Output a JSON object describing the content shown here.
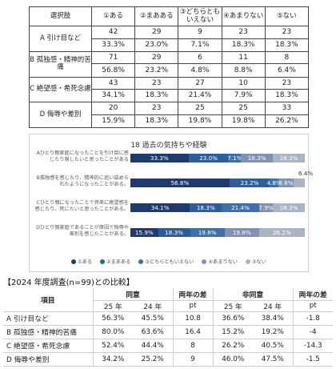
{
  "top_table": {
    "corner": "選択肢",
    "headers": [
      "①ある",
      "②まあある",
      "③どちらともいえない",
      "④あまりない",
      "⑤ない"
    ],
    "rows": [
      {
        "label": "A 引け目など",
        "counts": [
          "42",
          "29",
          "9",
          "23",
          "23"
        ],
        "percents": [
          "33.3%",
          "23.0%",
          "7.1%",
          "18.3%",
          "18.3%"
        ]
      },
      {
        "label": "B 孤独感・精神的苦痛",
        "counts": [
          "71",
          "29",
          "6",
          "11",
          "8"
        ],
        "percents": [
          "56.8%",
          "23.2%",
          "4.8%",
          "8.8%",
          "6.4%"
        ]
      },
      {
        "label": "C 絶望感・希死念慮",
        "counts": [
          "43",
          "23",
          "27",
          "10",
          "23"
        ],
        "percents": [
          "34.1%",
          "18.3%",
          "21.4%",
          "7.9%",
          "18.3%"
        ]
      },
      {
        "label": "D 侮辱や差別",
        "counts": [
          "20",
          "23",
          "25",
          "25",
          "33"
        ],
        "percents": [
          "15.9%",
          "18.3%",
          "19.8%",
          "19.8%",
          "26.2%"
        ]
      }
    ]
  },
  "chart_data": {
    "type": "bar",
    "stacked": true,
    "orientation": "horizontal",
    "title": "18 過去の気持ちや経験",
    "categories": [
      "Aひとり親家庭になったことを引け目に感じたり隠したいと思ったことがある",
      "B孤独感を感じたり、精神的に追い詰められたようになったことがある。",
      "Cひとり親になったことで将来に絶望感を感じたり、死にたいと思ったことがある。",
      "Dひとり親家庭であることが原因で侮辱や差別を感じたことがある。"
    ],
    "series": [
      {
        "name": "①ある",
        "color": "#1f3a6e",
        "values": [
          33.3,
          56.8,
          34.1,
          15.9
        ]
      },
      {
        "name": "②まあある",
        "color": "#2d5d9a",
        "values": [
          23.0,
          23.2,
          18.3,
          18.3
        ]
      },
      {
        "name": "③どちらともいえない",
        "color": "#3f6fab",
        "values": [
          7.1,
          4.8,
          21.4,
          19.8
        ]
      },
      {
        "name": "④あまりない",
        "color": "#7f93b0",
        "values": [
          18.3,
          8.8,
          7.9,
          19.8
        ]
      },
      {
        "name": "⑤ない",
        "color": "#a9b4c4",
        "values": [
          18.3,
          6.4,
          18.3,
          26.2
        ]
      }
    ],
    "unit": "%",
    "callouts": [
      {
        "row": 1,
        "text": "6.4%"
      }
    ]
  },
  "comparison": {
    "title": "【2024 年度調査(n=99)との比較】",
    "item_header": "項目",
    "agree_header": "同意",
    "agree_diff_header": "両年の差",
    "disagree_header": "非同意",
    "disagree_diff_header": "両年の差",
    "sub": {
      "y25": "25 年",
      "y24": "24 年",
      "pt": "pt"
    },
    "rows": [
      {
        "item": "A 引け目など",
        "agree25": "56.3%",
        "agree24": "45.5%",
        "agree_diff": "10.8",
        "dis25": "36.6%",
        "dis24": "38.4%",
        "dis_diff": "-1.8"
      },
      {
        "item": "B 孤独感・精神的苦痛",
        "agree25": "80.0%",
        "agree24": "63.6%",
        "agree_diff": "16.4",
        "dis25": "15.2%",
        "dis24": "19.2%",
        "dis_diff": "-4"
      },
      {
        "item": "C 絶望感・希死念慮",
        "agree25": "52.4%",
        "agree24": "44.4%",
        "agree_diff": "8",
        "dis25": "26.2%",
        "dis24": "40.5%",
        "dis_diff": "-14.3"
      },
      {
        "item": "D 侮辱や差別",
        "agree25": "34.2%",
        "agree24": "25.2%",
        "agree_diff": "9",
        "dis25": "46.0%",
        "dis24": "47.5%",
        "dis_diff": "-1.5"
      }
    ]
  }
}
